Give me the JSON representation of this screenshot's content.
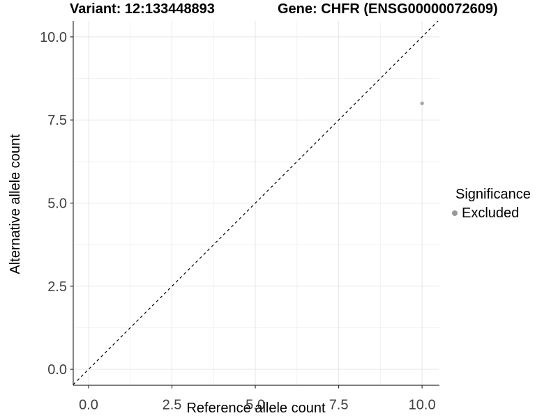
{
  "chart_data": {
    "type": "scatter",
    "title_left": "Variant: 12:133448893",
    "title_right": "Gene: CHFR (ENSG00000072609)",
    "xlabel": "Reference allele count",
    "ylabel": "Alternative allele count",
    "xlim": [
      -0.46,
      10.52
    ],
    "ylim": [
      -0.48,
      10.48
    ],
    "x_ticks": [
      0,
      2.5,
      5,
      7.5,
      10
    ],
    "x_tick_labels": [
      "0.0",
      "2.5",
      "5.0",
      "7.5",
      "10.0"
    ],
    "y_ticks": [
      0,
      2.5,
      5,
      7.5,
      10
    ],
    "y_tick_labels": [
      "0.0",
      "2.5",
      "5.0",
      "7.5",
      "10.0"
    ],
    "x_minor_gridlines": [
      1.25,
      3.75,
      6.25,
      8.75
    ],
    "y_minor_gridlines": [
      1.25,
      3.75,
      6.25,
      8.75
    ],
    "grid": true,
    "legend_position": "right",
    "abline": {
      "slope": 1,
      "intercept": 0,
      "style": "dashed",
      "color": "#000000"
    },
    "points": [
      {
        "x": 10,
        "y": 8,
        "series": "Excluded"
      }
    ],
    "legend": {
      "title": "Significance",
      "entries": [
        {
          "label": "Excluded",
          "color": "#999999",
          "marker": "circle"
        }
      ]
    },
    "colors": {
      "point": "#a8a8a8",
      "grid_major": "#e7e7e7",
      "grid_minor": "#f2f2f2",
      "axis": "#333333",
      "tick_label": "#404040",
      "title": "#000000",
      "background": "#ffffff"
    }
  }
}
